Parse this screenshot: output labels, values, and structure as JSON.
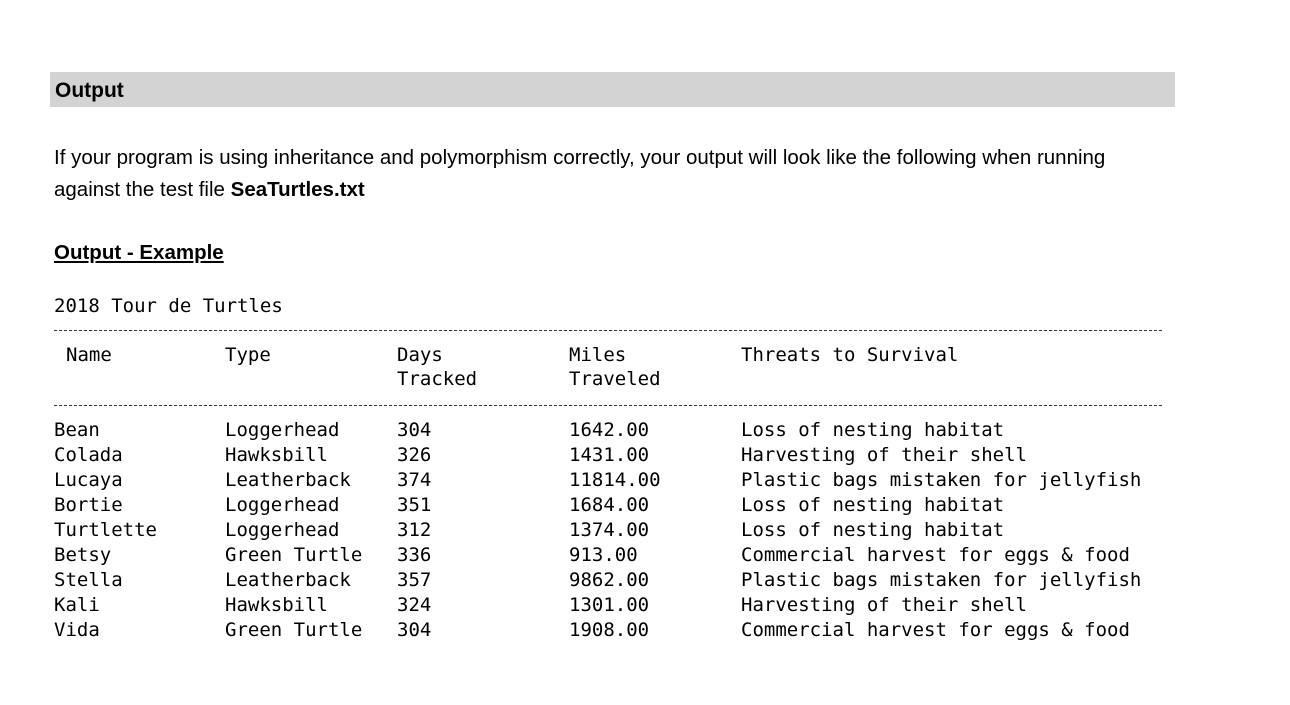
{
  "section": {
    "title": "Output",
    "intro": "If your program is using inheritance and polymorphism correctly, your output will look like the following when running against the test file ",
    "file_name": "SeaTurtles.txt",
    "example_title": "Output - Example"
  },
  "output": {
    "caption": "2018 Tour de Turtles",
    "columns": [
      [
        "Name"
      ],
      [
        "Type"
      ],
      [
        "Days",
        "Tracked"
      ],
      [
        "Miles",
        "Traveled"
      ],
      [
        "Threats to Survival"
      ]
    ],
    "rows": [
      [
        "Bean",
        "Loggerhead",
        304,
        "1642.00",
        "Loss of nesting habitat"
      ],
      [
        "Colada",
        "Hawksbill",
        326,
        "1431.00",
        "Harvesting of their shell"
      ],
      [
        "Lucaya",
        "Leatherback",
        374,
        "11814.00",
        "Plastic bags mistaken for jellyfish"
      ],
      [
        "Bortie",
        "Loggerhead",
        351,
        "1684.00",
        "Loss of nesting habitat"
      ],
      [
        "Turtlette",
        "Loggerhead",
        312,
        "1374.00",
        "Loss of nesting habitat"
      ],
      [
        "Betsy",
        "Green Turtle",
        336,
        "913.00",
        "Commercial harvest for eggs & food"
      ],
      [
        "Stella",
        "Leatherback",
        357,
        "9862.00",
        "Plastic bags mistaken for jellyfish"
      ],
      [
        "Kali",
        "Hawksbill",
        324,
        "1301.00",
        "Harvesting of their shell"
      ],
      [
        "Vida",
        "Green Turtle",
        304,
        "1908.00",
        "Commercial harvest for eggs & food"
      ]
    ]
  }
}
